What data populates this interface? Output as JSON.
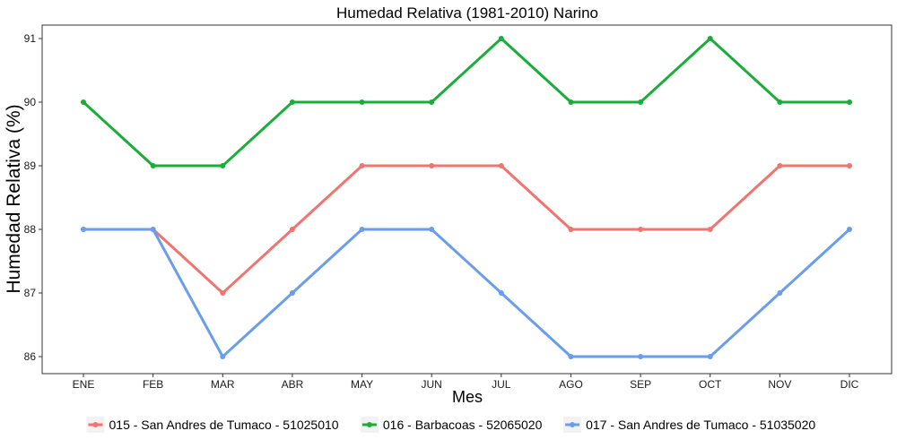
{
  "chart_data": {
    "type": "line",
    "title": "Humedad Relativa (1981-2010)  Narino",
    "xlabel": "Mes",
    "ylabel": "Humedad Relativa  (%)",
    "categories": [
      "ENE",
      "FEB",
      "MAR",
      "ABR",
      "MAY",
      "JUN",
      "JUL",
      "AGO",
      "SEP",
      "OCT",
      "NOV",
      "DIC"
    ],
    "ylim": [
      85.75,
      91.25
    ],
    "yticks": [
      86,
      87,
      88,
      89,
      90,
      91
    ],
    "grid": false,
    "legend_position": "bottom",
    "series": [
      {
        "name": "015 - San Andres de Tumaco - 51025010",
        "color": "#F07470",
        "values": [
          88,
          88,
          87,
          88,
          89,
          89,
          89,
          88,
          88,
          88,
          89,
          89
        ]
      },
      {
        "name": "016 - Barbacoas - 52065020",
        "color": "#1BAD3A",
        "values": [
          90,
          89,
          89,
          90,
          90,
          90,
          91,
          90,
          90,
          91,
          90,
          90
        ]
      },
      {
        "name": "017 - San Andres de Tumaco - 51035020",
        "color": "#6A9DEB",
        "values": [
          88,
          88,
          86,
          87,
          88,
          88,
          87,
          86,
          86,
          86,
          87,
          88
        ]
      }
    ]
  }
}
